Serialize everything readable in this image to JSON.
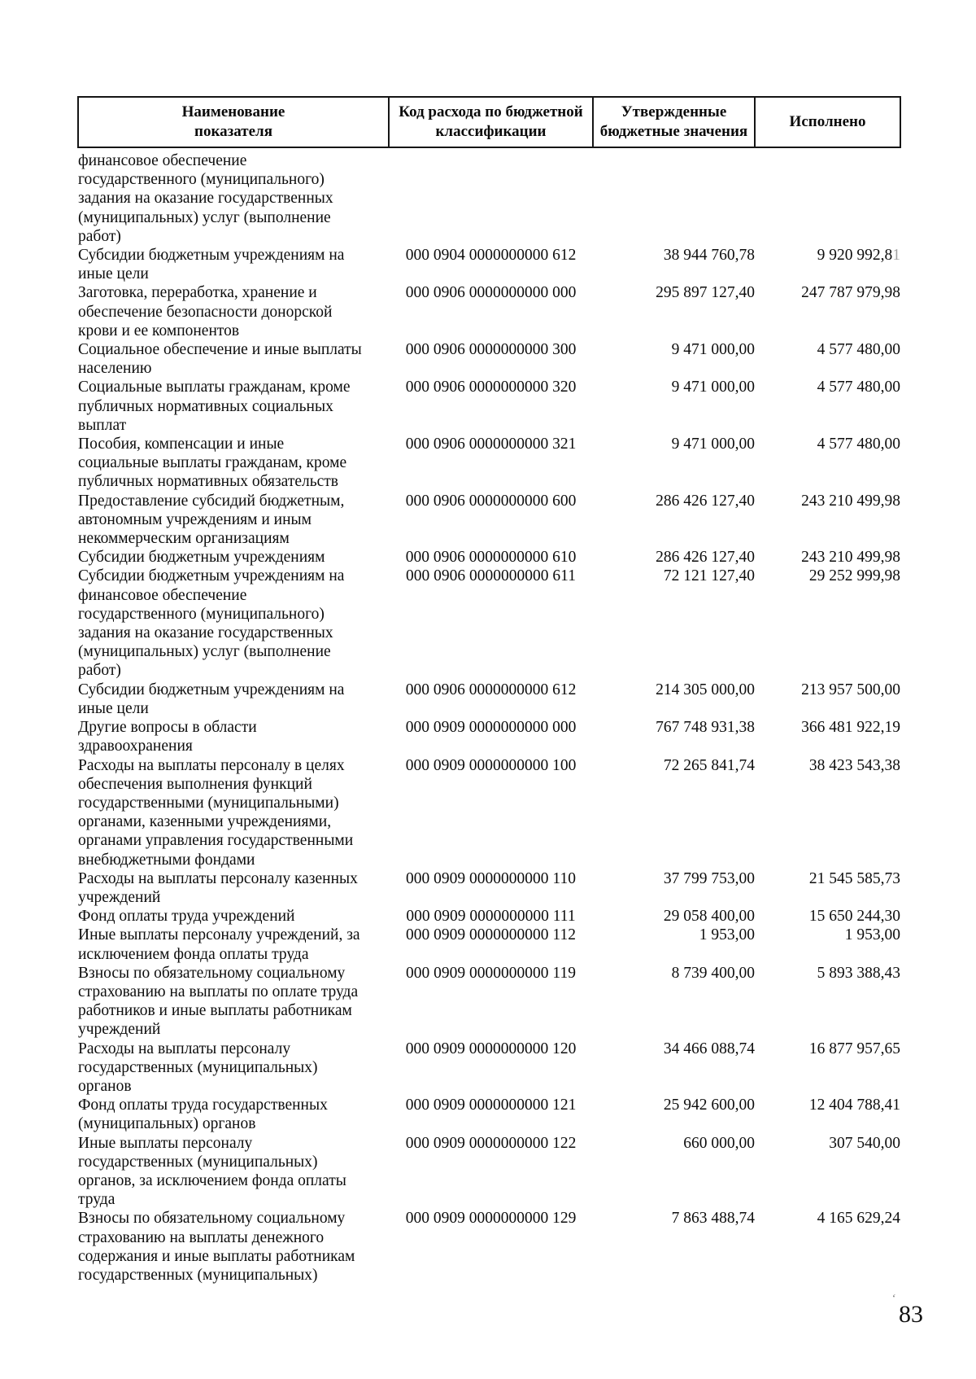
{
  "document": {
    "page_number": "83",
    "artifact_mark": "ʻ"
  },
  "table": {
    "headers": [
      "Наименование\nпоказателя",
      "Код расхода по бюджетной\nклассификации",
      "Утвержденные\nбюджетные значения",
      "Исполнено"
    ],
    "rows": [
      {
        "name": "финансовое обеспечение\nгосударственного (муниципального)\nзадания на оказание государственных\n(муниципальных) услуг (выполнение\nработ)",
        "code": "",
        "approved": "",
        "executed": ""
      },
      {
        "name": "Субсидии бюджетным учреждениям на\nиные цели",
        "code": "000 0904 0000000000 612",
        "approved": "38 944 760,78",
        "executed": "9 920 992,8",
        "executed_faint": "1"
      },
      {
        "name": "Заготовка, переработка, хранение и\nобеспечение безопасности донорской\nкрови и ее компонентов",
        "code": "000 0906 0000000000 000",
        "approved": "295 897 127,40",
        "executed": "247 787 979,98"
      },
      {
        "name": "Социальное обеспечение и иные выплаты\nнаселению",
        "code": "000 0906 0000000000 300",
        "approved": "9 471 000,00",
        "executed": "4 577 480,00"
      },
      {
        "name": "Социальные выплаты гражданам, кроме\nпубличных нормативных социальных\nвыплат",
        "code": "000 0906 0000000000 320",
        "approved": "9 471 000,00",
        "executed": "4 577 480,00"
      },
      {
        "name": "Пособия, компенсации и иные\nсоциальные выплаты гражданам, кроме\nпубличных нормативных обязательств",
        "code": "000 0906 0000000000 321",
        "approved": "9 471 000,00",
        "executed": "4 577 480,00"
      },
      {
        "name": "Предоставление субсидий бюджетным,\nавтономным учреждениям и иным\nнекоммерческим организациям",
        "code": "000 0906 0000000000 600",
        "approved": "286 426 127,40",
        "executed": "243 210 499,98"
      },
      {
        "name": "Субсидии бюджетным учреждениям",
        "code": "000 0906 0000000000 610",
        "approved": "286 426 127,40",
        "executed": "243 210 499,98"
      },
      {
        "name": "Субсидии бюджетным учреждениям на\nфинансовое обеспечение\nгосударственного (муниципального)\nзадания на оказание государственных\n(муниципальных) услуг (выполнение\nработ)",
        "code": "000 0906 0000000000 611",
        "approved": "72 121 127,40",
        "executed": "29 252 999,98"
      },
      {
        "name": "Субсидии бюджетным учреждениям на\nиные цели",
        "code": "000 0906 0000000000 612",
        "approved": "214 305 000,00",
        "executed": "213 957 500,00"
      },
      {
        "name": "Другие вопросы в области\nздравоохранения",
        "code": "000 0909 0000000000 000",
        "approved": "767 748 931,38",
        "executed": "366 481 922,19"
      },
      {
        "name": "Расходы на выплаты персоналу в целях\nобеспечения выполнения функций\nгосударственными (муниципальными)\nорганами, казенными учреждениями,\nорганами управления государственными\nвнебюджетными фондами",
        "code": "000 0909 0000000000 100",
        "approved": "72 265 841,74",
        "executed": "38 423 543,38"
      },
      {
        "name": "Расходы на выплаты персоналу казенных\nучреждений",
        "code": "000 0909 0000000000 110",
        "approved": "37 799 753,00",
        "executed": "21 545 585,73"
      },
      {
        "name": "Фонд оплаты труда учреждений",
        "code": "000 0909 0000000000 111",
        "approved": "29 058 400,00",
        "executed": "15 650 244,30"
      },
      {
        "name": "Иные выплаты персоналу учреждений, за\nисключением фонда оплаты труда",
        "code": "000 0909 0000000000 112",
        "approved": "1 953,00",
        "executed": "1 953,00"
      },
      {
        "name": "Взносы по обязательному социальному\nстрахованию на выплаты по оплате труда\nработников и иные выплаты работникам\nучреждений",
        "code": "000 0909 0000000000 119",
        "approved": "8 739 400,00",
        "executed": "5 893 388,43"
      },
      {
        "name": "Расходы на выплаты персоналу\nгосударственных (муниципальных)\nорганов",
        "code": "000 0909 0000000000 120",
        "approved": "34 466 088,74",
        "executed": "16 877 957,65"
      },
      {
        "name": "Фонд оплаты труда государственных\n(муниципальных) органов",
        "code": "000 0909 0000000000 121",
        "approved": "25 942 600,00",
        "executed": "12 404 788,41"
      },
      {
        "name": "Иные выплаты персоналу\nгосударственных (муниципальных)\nорганов, за исключением фонда оплаты\nтруда",
        "code": "000 0909 0000000000 122",
        "approved": "660 000,00",
        "executed": "307 540,00"
      },
      {
        "name": "Взносы по обязательному социальному\nстрахованию на выплаты денежного\nсодержания и иные выплаты работникам\nгосударственных (муниципальных)",
        "code": "000 0909 0000000000 129",
        "approved": "7 863 488,74",
        "executed": "4 165 629,24"
      }
    ]
  }
}
